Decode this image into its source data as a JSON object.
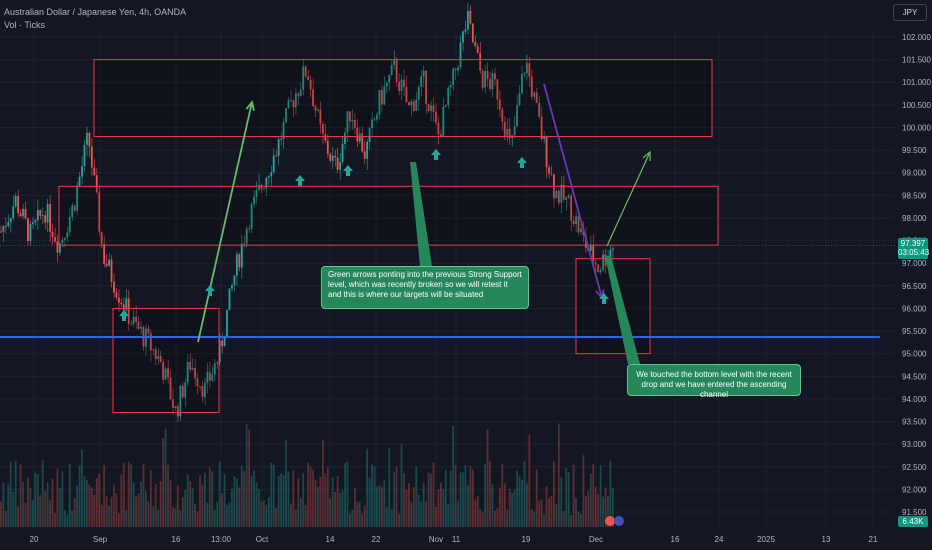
{
  "header": {
    "symbol_line": "Australian Dollar / Japanese Yen, 4h, OANDA",
    "indicator_line": "Vol · Ticks"
  },
  "toolbar": {
    "currency_label": "JPY"
  },
  "price_axis": {
    "current_price": "97.397",
    "countdown": "03:05:43",
    "volume_value": "6.43K"
  },
  "annotations": {
    "support_note": "Green arrows ponting into the previous Strong Support level, which was recently broken so we will retest it and this is where our targets will be situated",
    "channel_note": "We touched the bottom level with the recent drop and we have entered the ascending channel"
  },
  "colors": {
    "background": "#131722",
    "up": "#26a69a",
    "down": "#ef5350",
    "zone_border": "#f23645",
    "support_line": "#2962ff",
    "arrow_green": "#66bb6a",
    "arrow_purple": "#673ab7",
    "note_bg": "#26875a"
  },
  "chart_data": {
    "type": "candlestick",
    "y_ticks": [
      "102.000",
      "101.500",
      "101.000",
      "100.500",
      "100.000",
      "99.500",
      "99.000",
      "98.500",
      "98.000",
      "97.500",
      "97.000",
      "96.500",
      "96.000",
      "95.500",
      "95.000",
      "94.500",
      "94.000",
      "93.500",
      "93.000",
      "92.500",
      "92.000",
      "91.500"
    ],
    "y_values": [
      102.0,
      101.5,
      101.0,
      100.5,
      100.0,
      99.5,
      99.0,
      98.5,
      98.0,
      97.5,
      97.0,
      96.5,
      96.0,
      95.5,
      95.0,
      94.5,
      94.0,
      93.5,
      93.0,
      92.5,
      92.0,
      91.5
    ],
    "x_ticks": [
      "20",
      "Sep",
      "16",
      "13:00",
      "Oct",
      "14",
      "22",
      "Nov",
      "11",
      "19",
      "Dec",
      "16",
      "24",
      "2025",
      "13",
      "21"
    ],
    "price_path": [
      {
        "x": 0,
        "y": 97.7
      },
      {
        "x": 1,
        "y": 98.4
      },
      {
        "x": 2,
        "y": 97.6
      },
      {
        "x": 3,
        "y": 98.2
      },
      {
        "x": 4,
        "y": 97.4
      },
      {
        "x": 5,
        "y": 98.3
      },
      {
        "x": 6,
        "y": 99.8
      },
      {
        "x": 7,
        "y": 97.2
      },
      {
        "x": 8,
        "y": 96.4
      },
      {
        "x": 9,
        "y": 95.7
      },
      {
        "x": 10,
        "y": 95.3
      },
      {
        "x": 11,
        "y": 94.8
      },
      {
        "x": 12,
        "y": 93.7
      },
      {
        "x": 13,
        "y": 94.8
      },
      {
        "x": 14,
        "y": 94.2
      },
      {
        "x": 15,
        "y": 95.0
      },
      {
        "x": 16,
        "y": 96.7
      },
      {
        "x": 17,
        "y": 98.0
      },
      {
        "x": 18,
        "y": 98.8
      },
      {
        "x": 19,
        "y": 99.6
      },
      {
        "x": 20,
        "y": 100.6
      },
      {
        "x": 21,
        "y": 101.3
      },
      {
        "x": 22,
        "y": 99.8
      },
      {
        "x": 23,
        "y": 99.1
      },
      {
        "x": 24,
        "y": 100.4
      },
      {
        "x": 25,
        "y": 99.4
      },
      {
        "x": 26,
        "y": 100.6
      },
      {
        "x": 27,
        "y": 101.3
      },
      {
        "x": 28,
        "y": 100.4
      },
      {
        "x": 29,
        "y": 101.0
      },
      {
        "x": 30,
        "y": 99.8
      },
      {
        "x": 31,
        "y": 101.0
      },
      {
        "x": 32,
        "y": 102.4
      },
      {
        "x": 33,
        "y": 101.1
      },
      {
        "x": 34,
        "y": 100.9
      },
      {
        "x": 35,
        "y": 99.5
      },
      {
        "x": 36,
        "y": 101.5
      },
      {
        "x": 37,
        "y": 100.0
      },
      {
        "x": 38,
        "y": 98.6
      },
      {
        "x": 39,
        "y": 98.3
      },
      {
        "x": 40,
        "y": 97.5
      },
      {
        "x": 41,
        "y": 96.9
      },
      {
        "x": 42,
        "y": 97.4
      }
    ],
    "zones": [
      {
        "y_top": 101.5,
        "y_bottom": 99.8
      },
      {
        "y_top": 98.7,
        "y_bottom": 97.4
      },
      {
        "y_top": 96.0,
        "y_bottom": 93.7
      },
      {
        "y_top": 97.1,
        "y_bottom": 95.0
      }
    ],
    "support_level": 95.37,
    "current_price": 97.397,
    "ylim": [
      91.4,
      102.4
    ],
    "grid": true
  }
}
